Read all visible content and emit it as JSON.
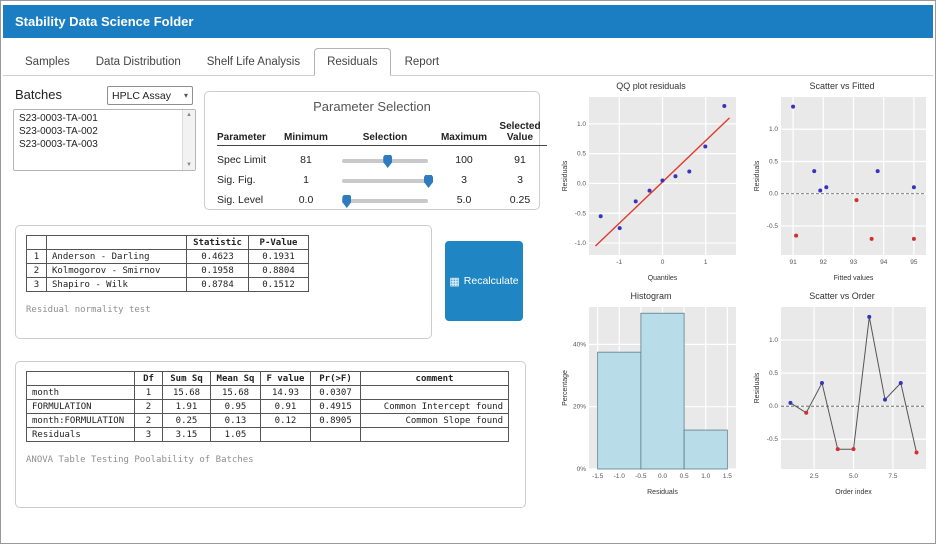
{
  "window": {
    "title": "Stability Data Science Folder"
  },
  "tabs": [
    {
      "label": "Samples"
    },
    {
      "label": "Data Distribution"
    },
    {
      "label": "Shelf Life Analysis"
    },
    {
      "label": "Residuals"
    },
    {
      "label": "Report"
    }
  ],
  "active_tab": "Residuals",
  "batches": {
    "heading": "Batches",
    "assay_select": {
      "value": "HPLC Assay"
    },
    "items": [
      "S23-0003-TA-001",
      "S23-0003-TA-002",
      "S23-0003-TA-003"
    ]
  },
  "parameter_selection": {
    "title": "Parameter Selection",
    "headers": [
      "Parameter",
      "Minimum",
      "Selection",
      "Maximum",
      "Selected Value"
    ],
    "rows": [
      {
        "parameter": "Spec Limit",
        "minimum": "81",
        "maximum": "100",
        "selected": "91"
      },
      {
        "parameter": "Sig. Fig.",
        "minimum": "1",
        "maximum": "3",
        "selected": "3"
      },
      {
        "parameter": "Sig. Level",
        "minimum": "0.0",
        "maximum": "5.0",
        "selected": "0.25"
      }
    ]
  },
  "normality": {
    "headers": [
      "",
      "",
      "Statistic",
      "P-Value"
    ],
    "rows": [
      [
        "1",
        "Anderson - Darling",
        "0.4623",
        "0.1931"
      ],
      [
        "2",
        "Kolmogorov - Smirnov",
        "0.1958",
        "0.8804"
      ],
      [
        "3",
        "Shapiro - Wilk",
        "0.8784",
        "0.1512"
      ]
    ],
    "caption": "Residual normality test"
  },
  "recalculate": {
    "label": "Recalculate"
  },
  "anova": {
    "headers": [
      "",
      "Df",
      "Sum Sq",
      "Mean Sq",
      "F value",
      "Pr(>F)",
      "comment"
    ],
    "rows": [
      [
        "month",
        "1",
        "15.68",
        "15.68",
        "14.93",
        "0.0307",
        ""
      ],
      [
        "FORMULATION",
        "2",
        "1.91",
        "0.95",
        "0.91",
        "0.4915",
        "Common Intercept found"
      ],
      [
        "month:FORMULATION",
        "2",
        "0.25",
        "0.13",
        "0.12",
        "0.8905",
        "Common Slope found"
      ],
      [
        "Residuals",
        "3",
        "3.15",
        "1.05",
        "",
        "",
        ""
      ]
    ],
    "caption": "ANOVA Table Testing Poolability of Batches"
  },
  "colors": {
    "titlebar": "#1b7ec2",
    "accent": "#1f86c3",
    "point_blue": "#3434bd",
    "point_red": "#d32f2f",
    "bar_fill": "#b9dce9",
    "bar_border": "#5c7d8a",
    "line_red": "#e03a2f",
    "panel_gray": "#e9e9e9"
  },
  "chart_data": [
    {
      "type": "scatter",
      "title": "QQ plot residuals",
      "xlabel": "Quantiles",
      "ylabel": "Residuals",
      "xlim": [
        -1.7,
        1.7
      ],
      "ylim": [
        -1.2,
        1.45
      ],
      "xticks": [
        -1,
        0,
        1
      ],
      "xtick_labels": [
        "-1",
        "0",
        "1"
      ],
      "yticks": [
        -1.0,
        -0.5,
        0.0,
        0.5,
        1.0
      ],
      "ytick_labels": [
        "-1.0",
        "-0.5",
        "0.0",
        "0.5",
        "1.0"
      ],
      "ref_line": {
        "x1": -1.55,
        "y1": -1.05,
        "x2": 1.55,
        "y2": 1.1
      },
      "points": [
        {
          "x": -1.43,
          "y": -0.55,
          "color": "blue"
        },
        {
          "x": -0.99,
          "y": -0.75,
          "color": "blue"
        },
        {
          "x": -0.62,
          "y": -0.3,
          "color": "blue"
        },
        {
          "x": -0.3,
          "y": -0.12,
          "color": "blue"
        },
        {
          "x": 0.0,
          "y": 0.05,
          "color": "blue"
        },
        {
          "x": 0.3,
          "y": 0.12,
          "color": "blue"
        },
        {
          "x": 0.62,
          "y": 0.2,
          "color": "blue"
        },
        {
          "x": 0.99,
          "y": 0.62,
          "color": "blue"
        },
        {
          "x": 1.43,
          "y": 1.3,
          "color": "blue"
        }
      ]
    },
    {
      "type": "scatter",
      "title": "Scatter vs Fitted",
      "xlabel": "Fitted values",
      "ylabel": "Residuals",
      "xlim": [
        90.6,
        95.4
      ],
      "ylim": [
        -0.95,
        1.5
      ],
      "xticks": [
        91,
        92,
        93,
        94,
        95
      ],
      "xtick_labels": [
        "91",
        "92",
        "93",
        "94",
        "95"
      ],
      "yticks": [
        -0.5,
        0.0,
        0.5,
        1.0
      ],
      "ytick_labels": [
        "-0.5",
        "0.0",
        "0.5",
        "1.0"
      ],
      "hline": 0,
      "points": [
        {
          "x": 91.0,
          "y": 1.35,
          "color": "blue"
        },
        {
          "x": 91.7,
          "y": 0.35,
          "color": "blue"
        },
        {
          "x": 91.9,
          "y": 0.05,
          "color": "blue"
        },
        {
          "x": 92.1,
          "y": 0.1,
          "color": "blue"
        },
        {
          "x": 93.8,
          "y": 0.35,
          "color": "blue"
        },
        {
          "x": 95.0,
          "y": 0.1,
          "color": "blue"
        },
        {
          "x": 91.1,
          "y": -0.65,
          "color": "red"
        },
        {
          "x": 93.1,
          "y": -0.1,
          "color": "red"
        },
        {
          "x": 93.6,
          "y": -0.7,
          "color": "red"
        },
        {
          "x": 95.0,
          "y": -0.7,
          "color": "red"
        }
      ]
    },
    {
      "type": "histogram",
      "title": "Histogram",
      "xlabel": "Residuals",
      "ylabel": "Percentage",
      "xlim": [
        -1.7,
        1.7
      ],
      "ylim": [
        0,
        0.52
      ],
      "xticks": [
        -1.5,
        -1.0,
        -0.5,
        0.0,
        0.5,
        1.0,
        1.5
      ],
      "xtick_labels": [
        "-1.5",
        "-1.0",
        "-0.5",
        "0.0",
        "0.5",
        "1.0",
        "1.5"
      ],
      "yticks": [
        0,
        0.2,
        0.4
      ],
      "ytick_labels": [
        "0%",
        "20%",
        "40%"
      ],
      "bars": [
        {
          "x0": -1.5,
          "x1": -0.5,
          "value": 0.375
        },
        {
          "x0": -0.5,
          "x1": 0.5,
          "value": 0.5
        },
        {
          "x0": 0.5,
          "x1": 1.5,
          "value": 0.125
        }
      ]
    },
    {
      "type": "scatter_line",
      "title": "Scatter vs Order",
      "xlabel": "Order index",
      "ylabel": "Residuals",
      "xlim": [
        0.4,
        9.6
      ],
      "ylim": [
        -0.95,
        1.5
      ],
      "xticks": [
        2.5,
        5.0,
        7.5
      ],
      "xtick_labels": [
        "2.5",
        "5.0",
        "7.5"
      ],
      "yticks": [
        -0.5,
        0.0,
        0.5,
        1.0
      ],
      "ytick_labels": [
        "-0.5",
        "0.0",
        "0.5",
        "1.0"
      ],
      "hline": 0,
      "points": [
        {
          "x": 1,
          "y": 0.05,
          "color": "blue"
        },
        {
          "x": 2,
          "y": -0.1,
          "color": "red"
        },
        {
          "x": 3,
          "y": 0.35,
          "color": "blue"
        },
        {
          "x": 4,
          "y": -0.65,
          "color": "red"
        },
        {
          "x": 5,
          "y": -0.65,
          "color": "red"
        },
        {
          "x": 6,
          "y": 1.35,
          "color": "blue"
        },
        {
          "x": 7,
          "y": 0.1,
          "color": "blue"
        },
        {
          "x": 8,
          "y": 0.35,
          "color": "blue"
        },
        {
          "x": 9,
          "y": -0.7,
          "color": "red"
        }
      ]
    }
  ]
}
